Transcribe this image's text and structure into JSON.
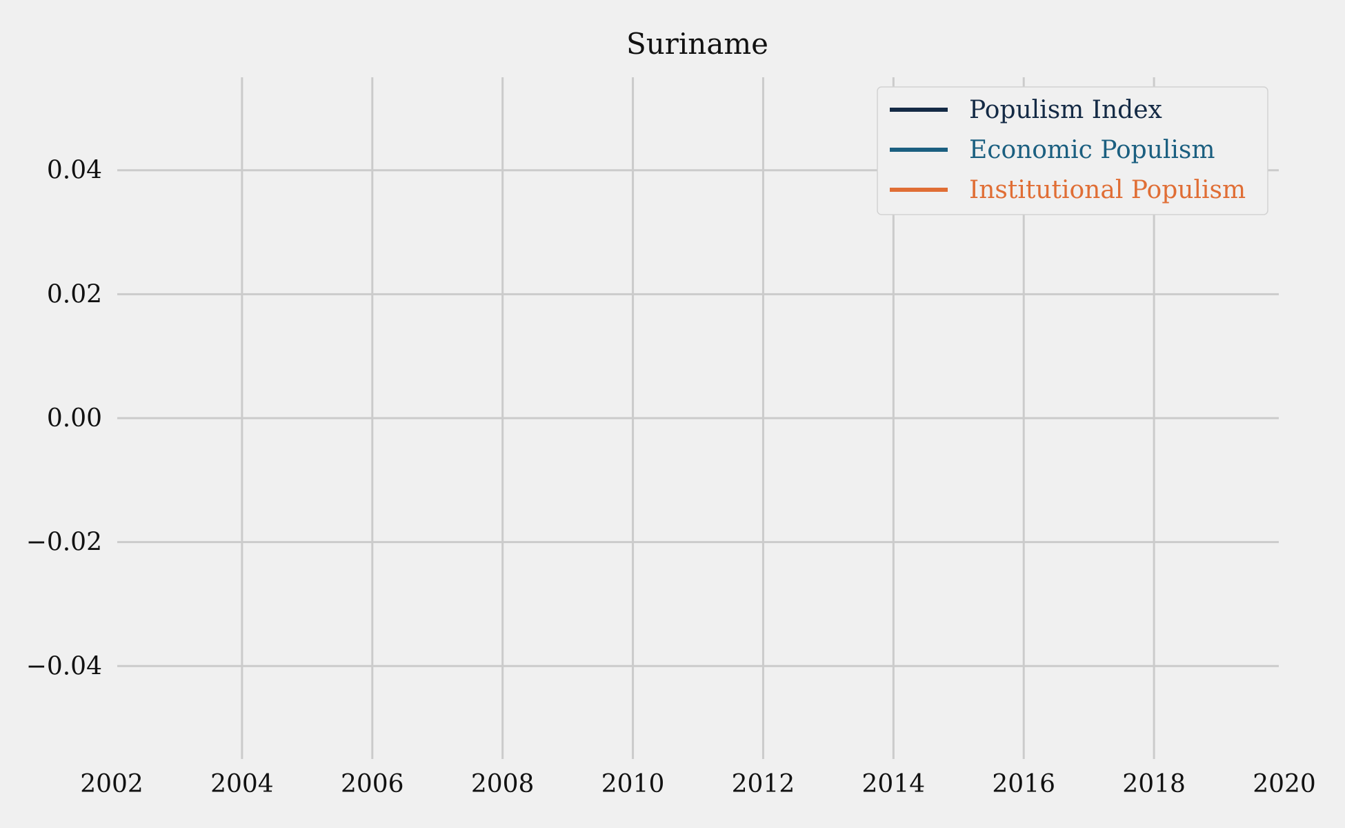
{
  "chart_data": {
    "type": "line",
    "title": "Suriname",
    "xlabel": "",
    "ylabel": "",
    "xlim": [
      2002,
      2020
    ],
    "ylim": [
      -0.055,
      0.055
    ],
    "xticks": [
      2002,
      2004,
      2006,
      2008,
      2010,
      2012,
      2014,
      2016,
      2018,
      2020
    ],
    "yticks": [
      -0.04,
      -0.02,
      0.0,
      0.02,
      0.04
    ],
    "ytick_labels": [
      "−0.04",
      "−0.02",
      "0.00",
      "0.02",
      "0.04"
    ],
    "xgrid": [
      2004,
      2006,
      2008,
      2010,
      2012,
      2014,
      2016,
      2018
    ],
    "ygrid": [
      -0.04,
      -0.02,
      0.0,
      0.02,
      0.04
    ],
    "grid": true,
    "legend_position": "top-right",
    "series": [
      {
        "name": "Populism Index",
        "color": "#142a45",
        "x": [],
        "y": []
      },
      {
        "name": "Economic Populism",
        "color": "#1b5f80",
        "x": [],
        "y": []
      },
      {
        "name": "Institutional Populism",
        "color": "#e06e35",
        "x": [],
        "y": []
      }
    ]
  }
}
